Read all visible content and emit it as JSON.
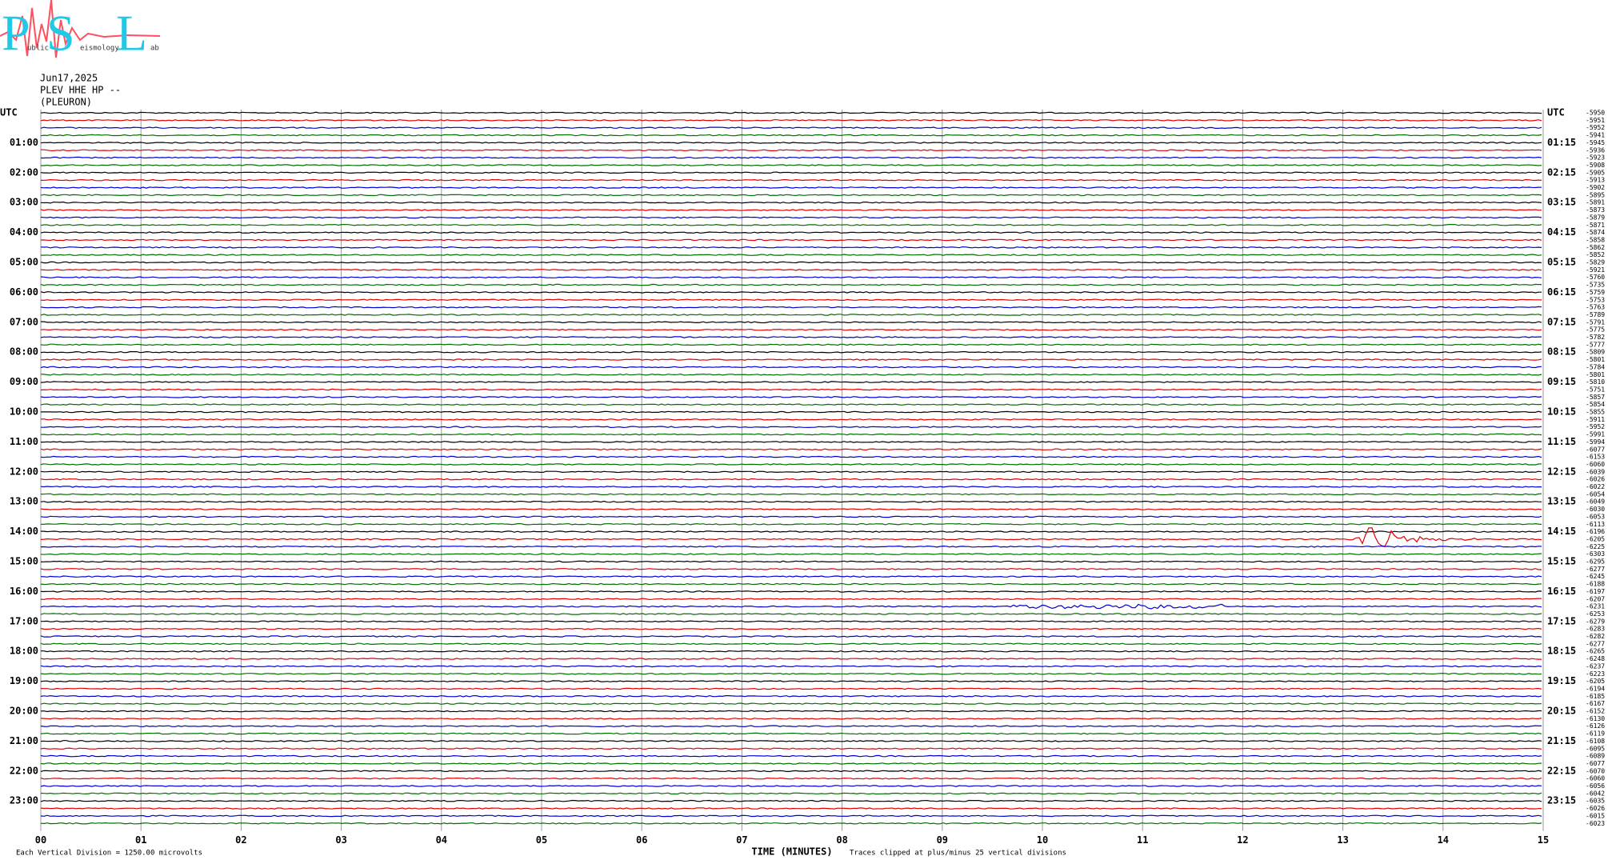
{
  "logo": {
    "big": [
      "P",
      "S",
      "L"
    ],
    "small": [
      "ublic",
      "eismology",
      "ab"
    ]
  },
  "header": {
    "date": "Jun17,2025",
    "station": "PLEV HHE HP --",
    "site": "(PLEURON)"
  },
  "left_labels": [
    "UTC",
    "01:00",
    "02:00",
    "03:00",
    "04:00",
    "05:00",
    "06:00",
    "07:00",
    "08:00",
    "09:00",
    "10:00",
    "11:00",
    "12:00",
    "13:00",
    "14:00",
    "15:00",
    "16:00",
    "17:00",
    "18:00",
    "19:00",
    "20:00",
    "21:00",
    "22:00",
    "23:00"
  ],
  "right_labels": [
    "UTC",
    "01:15",
    "02:15",
    "03:15",
    "04:15",
    "05:15",
    "06:15",
    "07:15",
    "08:15",
    "09:15",
    "10:15",
    "11:15",
    "12:15",
    "13:15",
    "14:15",
    "15:15",
    "16:15",
    "17:15",
    "18:15",
    "19:15",
    "20:15",
    "21:15",
    "22:15",
    "23:15"
  ],
  "offsets": [
    -5950,
    -5951,
    -5952,
    -5941,
    -5945,
    -5936,
    -5923,
    -5908,
    -5905,
    -5913,
    -5902,
    -5895,
    -5891,
    -5873,
    -5879,
    -5871,
    -5874,
    -5858,
    -5862,
    -5852,
    -5829,
    -5921,
    -5760,
    -5735,
    -5759,
    -5753,
    -5763,
    -5789,
    -5791,
    -5775,
    -5782,
    -5777,
    -5809,
    -5801,
    -5784,
    -5801,
    -5810,
    -5751,
    -5857,
    -5854,
    -5855,
    -5911,
    -5952,
    -5991,
    -5994,
    -6077,
    -6153,
    -6060,
    -6039,
    -6026,
    -6022,
    -6054,
    -6049,
    -6030,
    -6053,
    -6113,
    -6196,
    -6205,
    -6225,
    -6303,
    -6295,
    -6277,
    -6245,
    -6188,
    -6197,
    -6207,
    -6231,
    -6253,
    -6279,
    -6283,
    -6282,
    -6277,
    -6265,
    -6248,
    -6237,
    -6223,
    -6205,
    -6194,
    -6185,
    -6167,
    -6152,
    -6130,
    -6126,
    -6119,
    -6108,
    -6095,
    -6089,
    -6077,
    -6070,
    -6060,
    -6056,
    -6042,
    -6035,
    -6026,
    -6015,
    -6023
  ],
  "x_labels": [
    "00",
    "01",
    "02",
    "03",
    "04",
    "05",
    "06",
    "07",
    "08",
    "09",
    "10",
    "11",
    "12",
    "13",
    "14",
    "15"
  ],
  "trace_colors": [
    "#000000",
    "#e00000",
    "#0000d0",
    "#007000"
  ],
  "footer": {
    "scale": "Each Vertical Division = 1250.00 microvolts",
    "axis_title": "TIME (MINUTES)",
    "clip": "Traces clipped at plus/minus 25 vertical divisions"
  }
}
